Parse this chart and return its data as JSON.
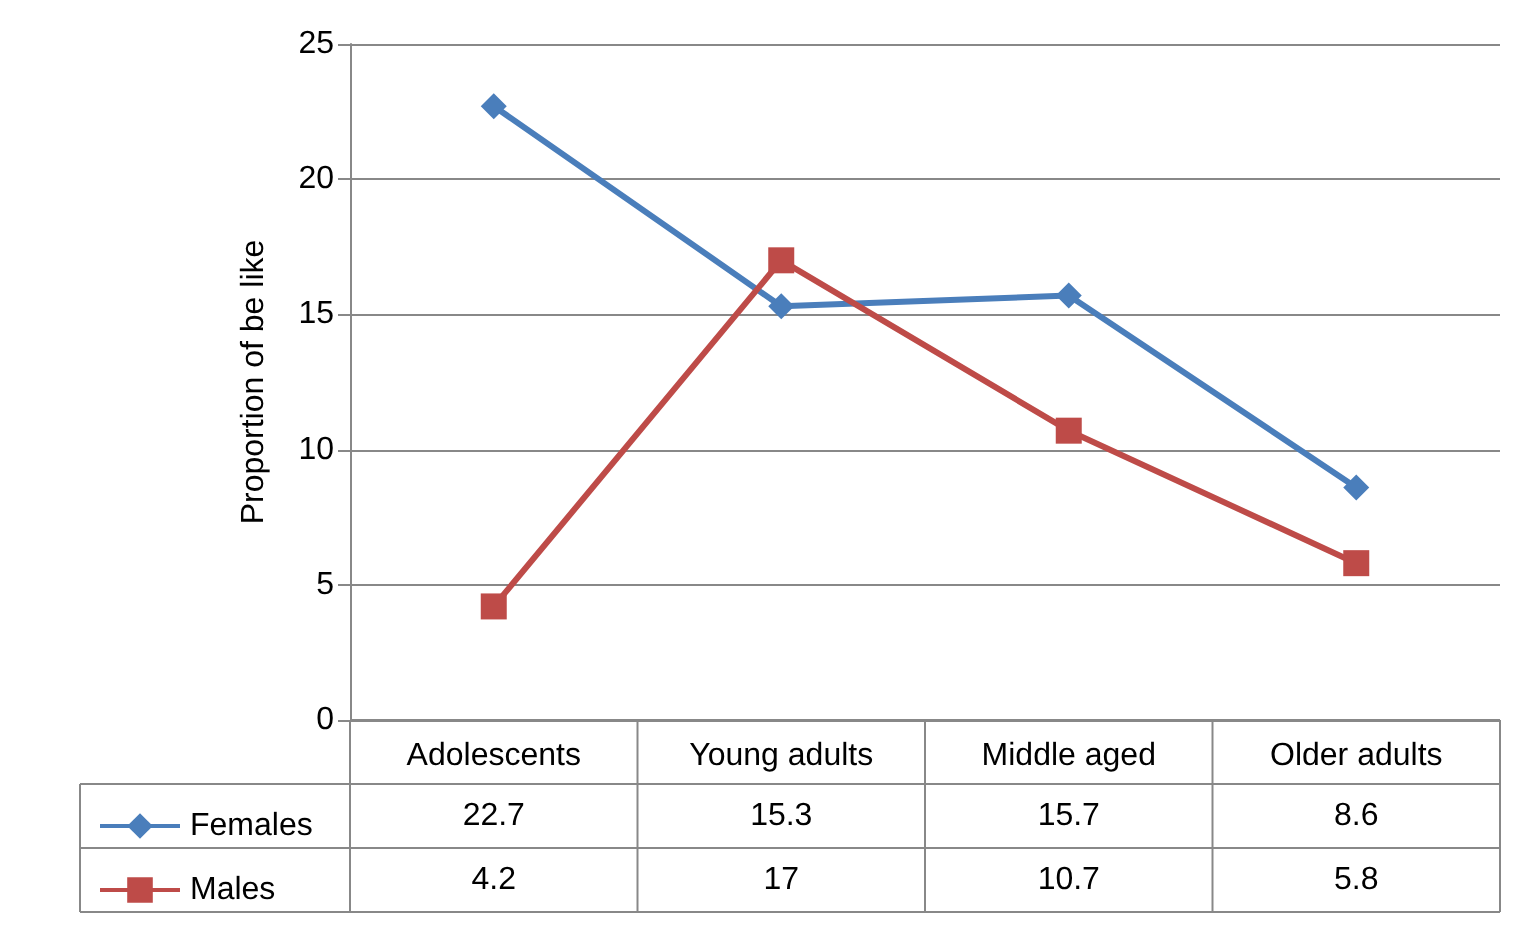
{
  "chart_data": {
    "type": "line",
    "ylabel": "Proportion of be like",
    "categories": [
      "Adolescents",
      "Young adults",
      "Middle aged",
      "Older adults"
    ],
    "series": [
      {
        "name": "Females",
        "color": "#4a7ebb",
        "marker": "diamond",
        "values": [
          22.7,
          15.3,
          15.7,
          8.6
        ]
      },
      {
        "name": "Males",
        "color": "#be4b48",
        "marker": "square",
        "values": [
          4.2,
          17,
          10.7,
          5.8
        ]
      }
    ],
    "ylim": [
      0,
      25
    ],
    "yticks": [
      0,
      5,
      10,
      15,
      20,
      25
    ],
    "grid": "y",
    "legend": "bottom",
    "data_labels": true,
    "line_style": "solid"
  }
}
